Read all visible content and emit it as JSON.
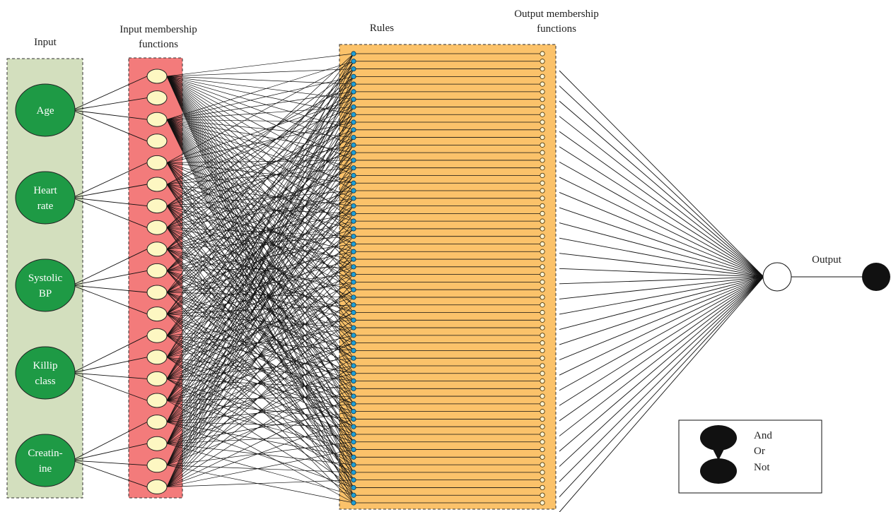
{
  "headers": {
    "input": "Input",
    "input_mf": [
      "Input membership",
      "functions"
    ],
    "rules": "Rules",
    "output_mf": [
      "Output membership",
      "functions"
    ]
  },
  "inputs": [
    {
      "lines": [
        "Age"
      ]
    },
    {
      "lines": [
        "Heart",
        "rate"
      ]
    },
    {
      "lines": [
        "Systolic",
        "BP"
      ]
    },
    {
      "lines": [
        "Killip",
        "class"
      ]
    },
    {
      "lines": [
        "Creatin-",
        "ine"
      ]
    }
  ],
  "mf_per_input": 4,
  "rule_count": 60,
  "output_label": "Output",
  "legend": [
    "And",
    "Or",
    "Not"
  ],
  "colors": {
    "input_panel": "#d3dfbe",
    "input_node": "#1e9a45",
    "mf_panel": "#f37b7b",
    "mf_node": "#fdf7c2",
    "rules_panel": "#fbc26a",
    "rule_dot": "#1f9fd6",
    "line": "#111111"
  }
}
